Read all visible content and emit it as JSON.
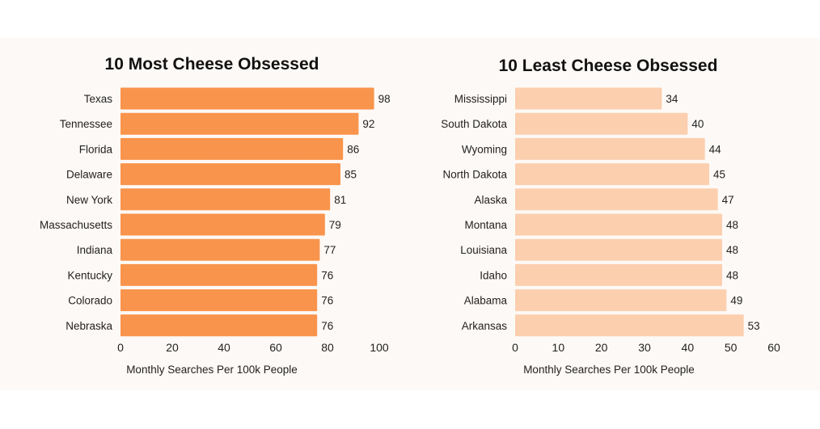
{
  "chart_data": [
    {
      "type": "bar",
      "orientation": "horizontal",
      "title": "10 Most Cheese Obsessed",
      "xlabel": "Monthly Searches Per 100k People",
      "ylabel": "",
      "categories": [
        "Texas",
        "Tennessee",
        "Florida",
        "Delaware",
        "New York",
        "Massachusetts",
        "Indiana",
        "Kentucky",
        "Colorado",
        "Nebraska"
      ],
      "values": [
        98,
        92,
        86,
        85,
        81,
        79,
        77,
        76,
        76,
        76
      ],
      "xlim": [
        0,
        100
      ],
      "ticks": [
        0,
        20,
        40,
        60,
        80,
        100
      ],
      "grid": false,
      "color": "#f9944c"
    },
    {
      "type": "bar",
      "orientation": "horizontal",
      "title": "10 Least Cheese Obsessed",
      "xlabel": "Monthly Searches Per 100k People",
      "ylabel": "",
      "categories": [
        "Mississippi",
        "South Dakota",
        "Wyoming",
        "North Dakota",
        "Alaska",
        "Montana",
        "Louisiana",
        "Idaho",
        "Alabama",
        "Arkansas"
      ],
      "values": [
        34,
        40,
        44,
        45,
        47,
        48,
        48,
        48,
        49,
        53
      ],
      "xlim": [
        0,
        60
      ],
      "ticks": [
        0,
        10,
        20,
        30,
        40,
        50,
        60
      ],
      "grid": false,
      "color": "#fccfaf"
    }
  ],
  "background": "#fdf9f6"
}
